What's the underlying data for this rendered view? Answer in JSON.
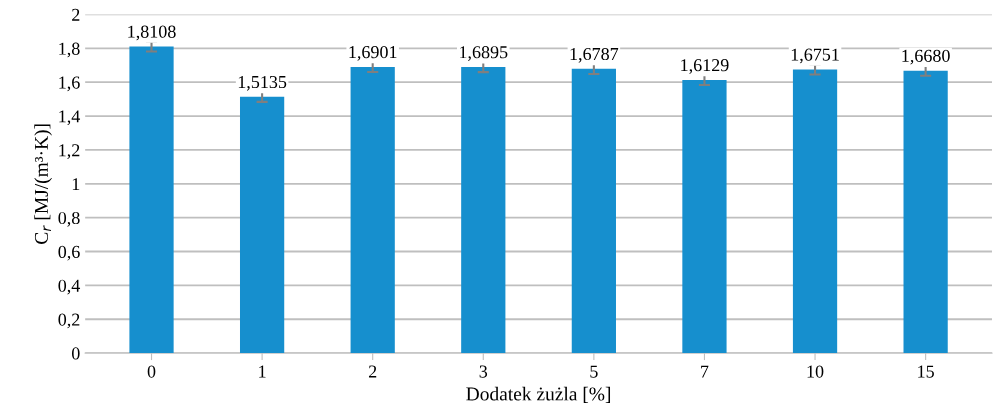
{
  "chart_data": {
    "type": "bar",
    "xlabel": "Dodatek żużla [%]",
    "ylabel": "C$_{r}$ [MJ/(m³·K)]",
    "categories": [
      "0",
      "1",
      "2",
      "3",
      "5",
      "7",
      "10",
      "15"
    ],
    "values": [
      1.8108,
      1.5135,
      1.6901,
      1.6895,
      1.6787,
      1.6129,
      1.6751,
      1.668
    ],
    "value_labels": [
      "1,8108",
      "1,5135",
      "1,6901",
      "1,6895",
      "1,6787",
      "1,6129",
      "1,6751",
      "1,6680"
    ],
    "errors": [
      0.03,
      0.03,
      0.03,
      0.03,
      0.03,
      0.03,
      0.03,
      0.03
    ],
    "color": "#168fce",
    "ylim": [
      0,
      2
    ],
    "yticks": [
      0,
      {
        "value": 0.2,
        "label": "0,2"
      },
      {
        "value": 0.4,
        "label": "0,4"
      },
      {
        "value": 0.6,
        "label": "0,6"
      },
      {
        "value": 0.8,
        "label": "0,8"
      },
      1,
      {
        "value": 1.2,
        "label": "1,2"
      },
      {
        "value": 1.4,
        "label": "1,4"
      },
      {
        "value": 1.6,
        "label": "1,6"
      },
      {
        "value": 1.8,
        "label": "1,8"
      },
      2
    ],
    "grid": "y",
    "legend": false
  }
}
